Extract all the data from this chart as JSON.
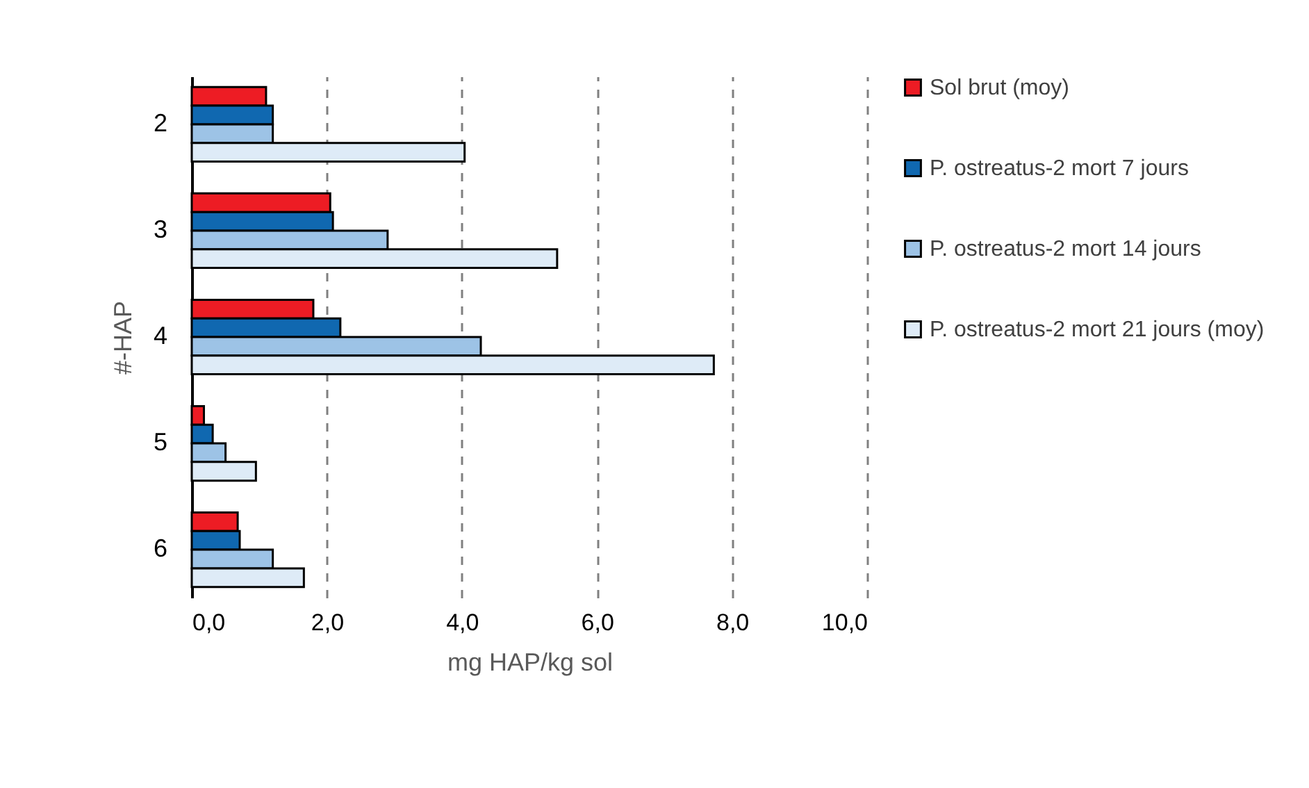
{
  "chart_data": {
    "type": "bar",
    "orientation": "horizontal",
    "xlabel": "mg HAP/kg sol",
    "ylabel": "#-HAP",
    "categories": [
      "2",
      "3",
      "4",
      "5",
      "6"
    ],
    "series": [
      {
        "name": "Sol brut (moy)",
        "color": "#ed1c24",
        "values": [
          1.1,
          2.05,
          1.8,
          0.18,
          0.68
        ]
      },
      {
        "name": "P. ostreatus-2 mort 7 jours",
        "color": "#1068b0",
        "values": [
          1.2,
          2.09,
          2.2,
          0.31,
          0.71
        ]
      },
      {
        "name": "P. ostreatus-2 mort 14 jours",
        "color": "#9dc3e6",
        "values": [
          1.2,
          2.9,
          4.28,
          0.5,
          1.2
        ]
      },
      {
        "name": "P. ostreatus-2 mort 21 jours (moy)",
        "color": "#deebf7",
        "values": [
          4.04,
          5.41,
          7.73,
          0.95,
          1.66
        ]
      }
    ],
    "xlim": [
      0,
      10
    ],
    "xticks": [
      {
        "value": 0,
        "label": "0,0"
      },
      {
        "value": 2,
        "label": "2,0"
      },
      {
        "value": 4,
        "label": "4,0"
      },
      {
        "value": 6,
        "label": "6,0"
      },
      {
        "value": 8,
        "label": "8,0"
      },
      {
        "value": 10,
        "label": "10,0"
      }
    ],
    "grid": "x",
    "legend": "right"
  }
}
